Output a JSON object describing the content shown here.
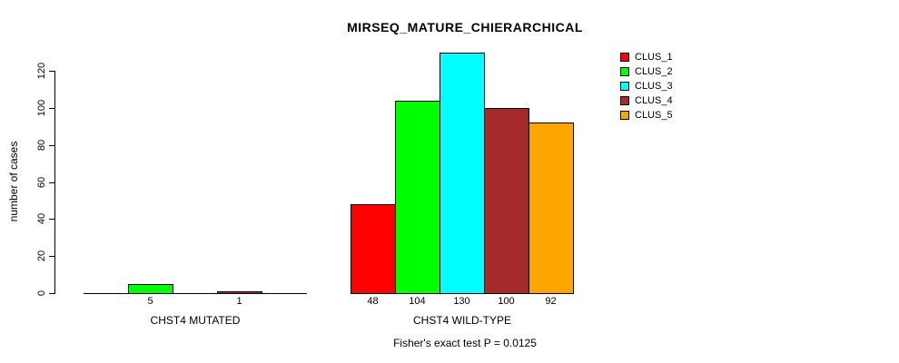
{
  "title": "MIRSEQ_MATURE_CHIERARCHICAL",
  "subtitle": "Fisher's exact test P = 0.0125",
  "y_axis": {
    "label": "number of cases"
  },
  "legend": {
    "position": "top-right",
    "items": [
      {
        "label": "CLUS_1",
        "color": "#FF0000"
      },
      {
        "label": "CLUS_2",
        "color": "#00FF00"
      },
      {
        "label": "CLUS_3",
        "color": "#00FFFF"
      },
      {
        "label": "CLUS_4",
        "color": "#A52A2A"
      },
      {
        "label": "CLUS_5",
        "color": "#FFA500"
      }
    ]
  },
  "chart_data": {
    "type": "bar",
    "title": "MIRSEQ_MATURE_CHIERARCHICAL",
    "xlabel": "",
    "ylabel": "number of cases",
    "ylim": [
      0,
      130
    ],
    "yticks": [
      0,
      20,
      40,
      60,
      80,
      100,
      120
    ],
    "grid": false,
    "legend_position": "top-right",
    "series_names": [
      "CLUS_1",
      "CLUS_2",
      "CLUS_3",
      "CLUS_4",
      "CLUS_5"
    ],
    "series_colors": [
      "#FF0000",
      "#00FF00",
      "#00FFFF",
      "#A52A2A",
      "#FFA500"
    ],
    "groups": [
      {
        "label": "CHST4 MUTATED",
        "values": [
          0,
          5,
          0,
          1,
          0
        ],
        "value_labels": [
          "",
          "5",
          "",
          "1",
          ""
        ]
      },
      {
        "label": "CHST4 WILD-TYPE",
        "values": [
          48,
          104,
          130,
          100,
          92
        ],
        "value_labels": [
          "48",
          "104",
          "130",
          "100",
          "92"
        ]
      }
    ],
    "annotation": "Fisher's exact test P = 0.0125"
  }
}
